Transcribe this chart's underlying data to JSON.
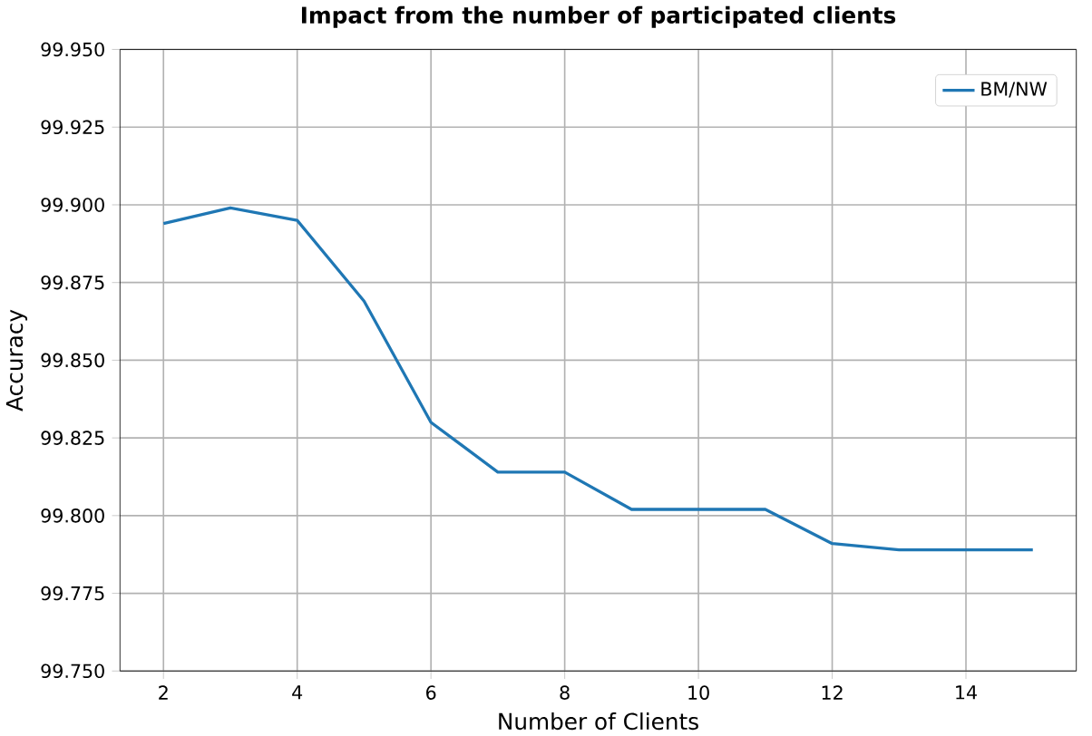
{
  "chart_data": {
    "type": "line",
    "title": "Impact from the number of participated clients",
    "xlabel": "Number of Clients",
    "ylabel": "Accuracy",
    "x": [
      2,
      3,
      4,
      5,
      6,
      7,
      8,
      9,
      10,
      11,
      12,
      13,
      14,
      15
    ],
    "series": [
      {
        "name": "BM/NW",
        "color": "#1f77b4",
        "values": [
          99.894,
          99.899,
          99.895,
          99.869,
          99.83,
          99.814,
          99.814,
          99.802,
          99.802,
          99.802,
          99.791,
          99.789,
          99.789,
          99.789
        ]
      }
    ],
    "xlim": [
      1.35,
      15.65
    ],
    "ylim": [
      99.75,
      99.95
    ],
    "xticks": [
      2,
      4,
      6,
      8,
      10,
      12,
      14
    ],
    "yticks": [
      {
        "value": 99.75,
        "label": "99.750"
      },
      {
        "value": 99.775,
        "label": "99.775"
      },
      {
        "value": 99.8,
        "label": "99.800"
      },
      {
        "value": 99.825,
        "label": "99.825"
      },
      {
        "value": 99.85,
        "label": "99.850"
      },
      {
        "value": 99.875,
        "label": "99.875"
      },
      {
        "value": 99.9,
        "label": "99.900"
      },
      {
        "value": 99.925,
        "label": "99.925"
      },
      {
        "value": 99.95,
        "label": "99.950"
      }
    ],
    "grid": true,
    "legend": "top right",
    "marker": "none",
    "line_style": "solid"
  }
}
